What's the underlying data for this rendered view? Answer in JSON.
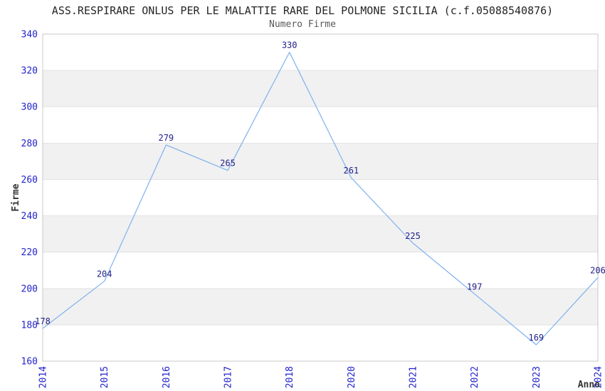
{
  "chart_data": {
    "type": "line",
    "title": "ASS.RESPIRARE ONLUS PER LE MALATTIE RARE DEL POLMONE SICILIA (c.f.05088540876)",
    "subtitle": "Numero Firme",
    "xlabel": "Anno",
    "ylabel": "Firme",
    "categories": [
      "2014",
      "2015",
      "2016",
      "2017",
      "2018",
      "2020",
      "2021",
      "2022",
      "2023",
      "2024"
    ],
    "values": [
      178,
      204,
      279,
      265,
      330,
      261,
      225,
      197,
      169,
      206
    ],
    "ylim": [
      160,
      340
    ],
    "ytick_step": 20,
    "yticks": [
      160,
      180,
      200,
      220,
      240,
      260,
      280,
      300,
      320,
      340
    ],
    "grid": "horizontal-alternating-bands",
    "legend": "none",
    "x_tick_rotation_degrees": 90,
    "colors": {
      "line": "#7FB1EE",
      "band": "#F1F1F1",
      "gridline": "#E2E2E2",
      "plot_border": "#C8C8C8",
      "axis_tick_text": "#2222CC",
      "value_label_text": "#20208A",
      "title_text": "#262626",
      "subtitle_text": "#595959",
      "axis_label_text": "#333333",
      "background": "#FFFFFF"
    }
  }
}
